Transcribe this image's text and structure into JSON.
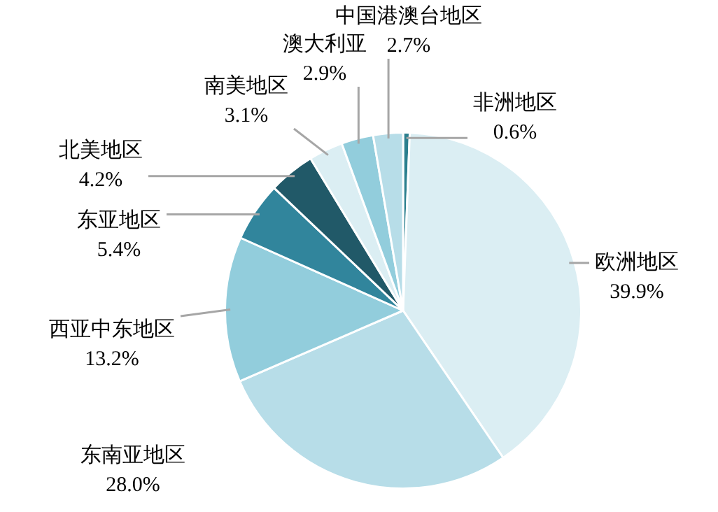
{
  "chart_data": {
    "type": "pie",
    "categories": [
      "非洲地区",
      "欧洲地区",
      "东南亚地区",
      "西亚中东地区",
      "东亚地区",
      "北美地区",
      "南美地区",
      "澳大利亚",
      "中国港澳台地区"
    ],
    "values": [
      0.6,
      39.9,
      28.0,
      13.2,
      5.4,
      4.2,
      3.1,
      2.9,
      2.7
    ],
    "colors": [
      "#2b7f8e",
      "#dbeef3",
      "#b7dde8",
      "#92cddc",
      "#31859c",
      "#215968",
      "#dbeef3",
      "#92cddc",
      "#b7dde8"
    ],
    "value_labels": [
      "0.6%",
      "39.9%",
      "28.0%",
      "13.2%",
      "5.4%",
      "4.2%",
      "3.1%",
      "2.9%",
      "2.7%"
    ],
    "legend": false
  }
}
